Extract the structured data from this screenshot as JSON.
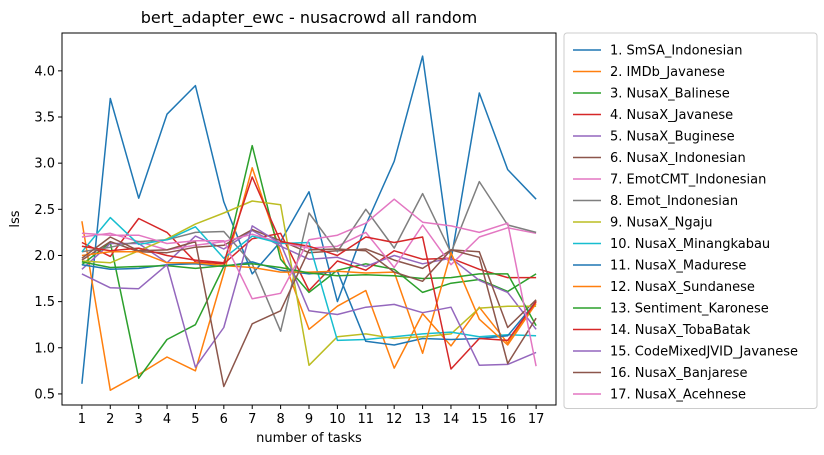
{
  "chart_data": {
    "type": "line",
    "title": "bert_adapter_ewc - nusacrowd all random",
    "xlabel": "number of tasks",
    "ylabel": "lss",
    "x": [
      1,
      2,
      3,
      4,
      5,
      6,
      7,
      8,
      9,
      10,
      11,
      12,
      13,
      14,
      15,
      16,
      17
    ],
    "xlim": [
      0.3,
      17.7
    ],
    "ylim": [
      0.38,
      4.41
    ],
    "yticks": [
      0.5,
      1.0,
      1.5,
      2.0,
      2.5,
      3.0,
      3.5,
      4.0
    ],
    "ytick_labels": [
      "0.5",
      "1.0",
      "1.5",
      "2.0",
      "2.5",
      "3.0",
      "3.5",
      "4.0"
    ],
    "grid": false,
    "legend_position": "outside-right",
    "series": [
      {
        "name": "1. SmSA_Indonesian",
        "color": "#1f77b4",
        "values": [
          0.61,
          3.7,
          2.62,
          3.53,
          3.84,
          2.58,
          1.8,
          2.15,
          2.69,
          1.5,
          2.33,
          3.02,
          4.16,
          1.95,
          3.76,
          2.93,
          2.61
        ]
      },
      {
        "name": "2. IMDb_Javanese",
        "color": "#ff7f0e",
        "values": [
          2.37,
          0.54,
          0.71,
          0.9,
          0.75,
          1.81,
          2.95,
          2.04,
          1.2,
          1.45,
          1.62,
          0.78,
          1.37,
          1.02,
          1.44,
          1.05,
          1.51
        ]
      },
      {
        "name": "3. NusaX_Balinese",
        "color": "#2ca02c",
        "values": [
          1.9,
          2.14,
          0.67,
          1.09,
          1.25,
          1.88,
          3.19,
          1.96,
          1.6,
          1.84,
          1.91,
          1.85,
          1.6,
          1.7,
          1.74,
          1.61,
          1.8
        ]
      },
      {
        "name": "4. NusaX_Javanese",
        "color": "#d62728",
        "values": [
          2.14,
          1.99,
          2.4,
          2.25,
          1.93,
          1.91,
          2.18,
          2.24,
          1.62,
          1.94,
          1.84,
          2.05,
          1.96,
          1.97,
          1.85,
          1.76,
          1.76
        ]
      },
      {
        "name": "5. NusaX_Buginese",
        "color": "#9467bd",
        "values": [
          1.85,
          2.13,
          2.13,
          1.92,
          2.21,
          2.07,
          2.27,
          2.1,
          1.96,
          1.98,
          1.88,
          2.0,
          1.91,
          1.97,
          1.73,
          1.6,
          1.2
        ]
      },
      {
        "name": "6. NusaX_Indonesian",
        "color": "#8c564b",
        "values": [
          1.95,
          2.15,
          2.04,
          2.03,
          2.09,
          2.11,
          2.28,
          2.16,
          2.03,
          2.05,
          2.07,
          1.95,
          1.86,
          2.06,
          2.04,
          1.22,
          1.52
        ]
      },
      {
        "name": "7. EmotCMT_Indonesian",
        "color": "#e377c2",
        "values": [
          2.2,
          2.24,
          2.15,
          2.06,
          2.11,
          2.15,
          2.23,
          2.14,
          2.08,
          2.1,
          2.25,
          1.87,
          2.33,
          1.9,
          2.2,
          2.3,
          2.24
        ]
      },
      {
        "name": "8. Emot_Indonesian",
        "color": "#7f7f7f",
        "values": [
          2.04,
          2.09,
          2.15,
          2.17,
          2.25,
          2.26,
          1.91,
          1.18,
          2.46,
          2.04,
          2.5,
          2.08,
          2.67,
          2.03,
          2.8,
          2.33,
          2.25
        ]
      },
      {
        "name": "9. NusaX_Ngaju",
        "color": "#bcbd22",
        "values": [
          1.94,
          1.92,
          2.05,
          2.18,
          2.34,
          2.46,
          2.59,
          2.55,
          0.81,
          1.12,
          1.15,
          1.1,
          1.12,
          1.15,
          1.43,
          1.45,
          1.45
        ]
      },
      {
        "name": "10. NusaX_Minangkabau",
        "color": "#17becf",
        "values": [
          2.04,
          2.41,
          2.12,
          2.17,
          2.31,
          1.97,
          2.21,
          2.13,
          2.14,
          1.08,
          1.09,
          1.12,
          1.15,
          1.17,
          1.12,
          1.14,
          1.13
        ]
      },
      {
        "name": "11. NusaX_Madurese",
        "color": "#1f77b4",
        "values": [
          1.9,
          1.85,
          1.86,
          1.9,
          1.91,
          1.88,
          1.93,
          1.84,
          1.8,
          1.83,
          1.07,
          1.03,
          1.1,
          1.09,
          1.1,
          1.13,
          1.5
        ]
      },
      {
        "name": "12. NusaX_Sundanese",
        "color": "#ff7f0e",
        "values": [
          2.0,
          2.04,
          2.04,
          1.92,
          1.92,
          1.89,
          1.87,
          1.82,
          1.82,
          1.83,
          1.81,
          1.82,
          0.94,
          2.03,
          1.31,
          1.03,
          1.48
        ]
      },
      {
        "name": "13. Sentiment_Karonese",
        "color": "#2ca02c",
        "values": [
          1.93,
          1.87,
          1.88,
          1.89,
          1.86,
          1.89,
          1.91,
          1.87,
          1.81,
          1.78,
          1.79,
          1.78,
          1.75,
          1.76,
          1.8,
          1.8,
          1.24
        ]
      },
      {
        "name": "14. NusaX_TobaBatak",
        "color": "#d62728",
        "values": [
          2.1,
          2.05,
          2.08,
          2.0,
          1.95,
          1.92,
          2.85,
          2.15,
          2.1,
          2.0,
          2.2,
          2.14,
          2.2,
          0.77,
          1.1,
          1.08,
          1.5
        ]
      },
      {
        "name": "15. CodeMixedJVID_Javanese",
        "color": "#9467bd",
        "values": [
          1.8,
          1.65,
          1.64,
          1.9,
          0.79,
          1.22,
          2.32,
          2.13,
          1.4,
          1.36,
          1.44,
          1.47,
          1.38,
          1.44,
          0.81,
          0.82,
          0.95
        ]
      },
      {
        "name": "16. NusaX_Banjarese",
        "color": "#8c564b",
        "values": [
          1.97,
          2.2,
          2.05,
          2.06,
          2.15,
          0.58,
          1.26,
          1.4,
          2.06,
          2.07,
          2.05,
          1.82,
          1.72,
          2.06,
          1.98,
          0.83,
          1.32
        ]
      },
      {
        "name": "17. NusaX_Acehnese",
        "color": "#e377c2",
        "values": [
          2.24,
          2.22,
          2.22,
          2.13,
          2.16,
          2.16,
          1.53,
          1.59,
          2.17,
          2.22,
          2.35,
          2.61,
          2.36,
          2.32,
          2.25,
          2.35,
          0.8
        ]
      }
    ]
  }
}
